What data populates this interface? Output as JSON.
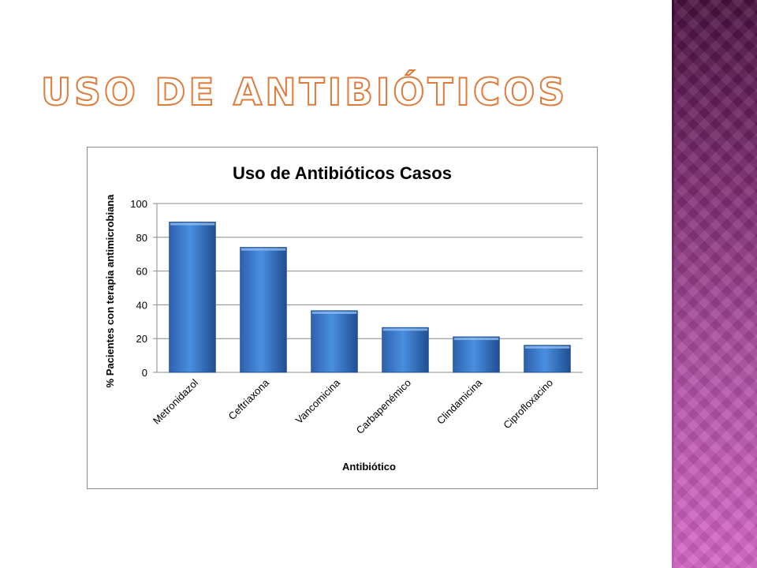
{
  "slide": {
    "title": "USO DE ANTIBIÓTICOS"
  },
  "colors": {
    "bar": "#3d7fd4",
    "bar_dark": "#1f4f91",
    "grid": "#8c8c8c",
    "title_outline": "#e07b3c"
  },
  "chart_data": {
    "type": "bar",
    "title": "Uso de Antibióticos Casos",
    "xlabel": "Antibiótico",
    "ylabel": "% Pacientes con terapia antimicrobiana",
    "categories": [
      "Metronidazol",
      "Ceftriaxona",
      "Vancomicina",
      "Carbapenémico",
      "Clindamicina",
      "Ciprofloxacino"
    ],
    "values": [
      89,
      74,
      36.5,
      26.5,
      21,
      16
    ],
    "ylim": [
      0,
      100
    ],
    "yticks": [
      0,
      20,
      40,
      60,
      80,
      100
    ],
    "grid": true,
    "legend": "none"
  }
}
